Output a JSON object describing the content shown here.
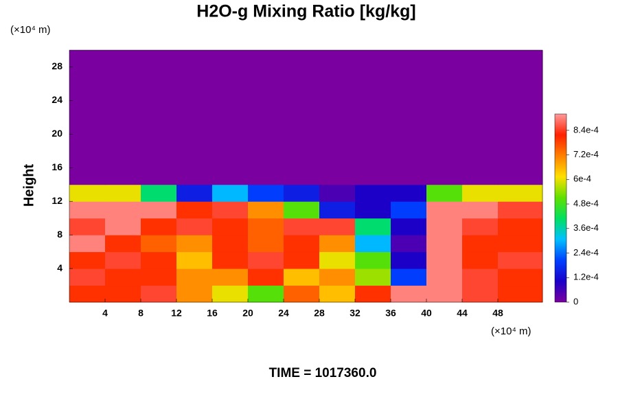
{
  "chart_data": {
    "type": "contour",
    "title": "H2O-g Mixing Ratio [kg/kg]",
    "ylabel": "Height",
    "x_unit": "(×10⁴ m)",
    "y_unit": "(×10⁴ m)",
    "footer": "TIME = 1017360.0",
    "xlim": [
      0,
      53
    ],
    "ylim": [
      0,
      30
    ],
    "xticks": [
      4,
      8,
      12,
      16,
      20,
      24,
      28,
      32,
      36,
      40,
      44,
      48
    ],
    "yticks": [
      4,
      8,
      12,
      16,
      20,
      24,
      28
    ],
    "x": [
      2,
      6,
      10,
      14,
      18,
      22,
      26,
      30,
      34,
      38,
      42,
      46,
      50
    ],
    "y": [
      1,
      3,
      5,
      7,
      9,
      11,
      13,
      15,
      17,
      19,
      21,
      23,
      25,
      27,
      29
    ],
    "z": [
      [
        0.0008,
        0.0008,
        0.00085,
        0.0007,
        0.0006,
        0.0005,
        0.00075,
        0.00065,
        0.0008,
        0.0009,
        0.0009,
        0.00085,
        0.0008
      ],
      [
        0.00085,
        0.0008,
        0.0008,
        0.0007,
        0.0007,
        0.0008,
        0.00065,
        0.0007,
        0.00055,
        0.0002,
        0.0009,
        0.00085,
        0.0008
      ],
      [
        0.0008,
        0.00085,
        0.0008,
        0.00065,
        0.0008,
        0.00085,
        0.0008,
        0.0006,
        0.0005,
        0.0001,
        0.0009,
        0.0008,
        0.00085
      ],
      [
        0.0009,
        0.0008,
        0.00075,
        0.0007,
        0.0008,
        0.00075,
        0.0008,
        0.0007,
        0.0003,
        5e-05,
        0.0009,
        0.0008,
        0.0008
      ],
      [
        0.00085,
        0.0009,
        0.0008,
        0.00085,
        0.0008,
        0.00075,
        0.00085,
        0.00085,
        0.0004,
        0.0001,
        0.0009,
        0.00085,
        0.0008
      ],
      [
        0.0009,
        0.0009,
        0.0009,
        0.0008,
        0.00085,
        0.0007,
        0.0005,
        0.00015,
        0.0001,
        0.0002,
        0.0009,
        0.0009,
        0.00085
      ],
      [
        0.0006,
        0.0006,
        0.0004,
        0.00015,
        0.0003,
        0.0002,
        0.00015,
        5e-05,
        0.0001,
        0.0001,
        0.0005,
        0.0006,
        0.0006
      ],
      [
        0,
        0,
        0,
        0,
        0,
        0,
        0,
        0,
        0,
        0,
        0,
        0,
        0
      ],
      [
        0,
        0,
        0,
        0,
        0,
        0,
        0,
        0,
        0,
        0,
        0,
        0,
        0
      ],
      [
        0,
        0,
        0,
        0,
        0,
        0,
        0,
        0,
        0,
        0,
        0,
        0,
        0
      ],
      [
        0,
        0,
        0,
        0,
        0,
        0,
        0,
        0,
        0,
        0,
        0,
        0,
        0
      ],
      [
        0,
        0,
        0,
        0,
        0,
        0,
        0,
        0,
        0,
        0,
        0,
        0,
        0
      ],
      [
        0,
        0,
        0,
        0,
        0,
        0,
        0,
        0,
        0,
        0,
        0,
        0,
        0
      ],
      [
        0,
        0,
        0,
        0,
        0,
        0,
        0,
        0,
        0,
        0,
        0,
        0,
        0
      ],
      [
        0,
        0,
        0,
        0,
        0,
        0,
        0,
        0,
        0,
        0,
        0,
        0,
        0
      ]
    ],
    "zlim": [
      0,
      0.00092
    ],
    "zticks": [
      0,
      {
        "value": 0.00012,
        "label": "1.2e-4"
      },
      {
        "value": 0.00024,
        "label": "2.4e-4"
      },
      {
        "value": 0.00036,
        "label": "3.6e-4"
      },
      {
        "value": 0.00048,
        "label": "4.8e-4"
      },
      {
        "value": 0.0006,
        "label": "6e-4"
      },
      {
        "value": 0.00072,
        "label": "7.2e-4"
      },
      {
        "value": 0.00084,
        "label": "8.4e-4"
      }
    ],
    "colormap": [
      "#7a00a0",
      "#1a00c8",
      "#0040ff",
      "#00c0ff",
      "#00e060",
      "#60e000",
      "#ffe000",
      "#ff8000",
      "#ff2000",
      "#ff9a9a"
    ]
  }
}
